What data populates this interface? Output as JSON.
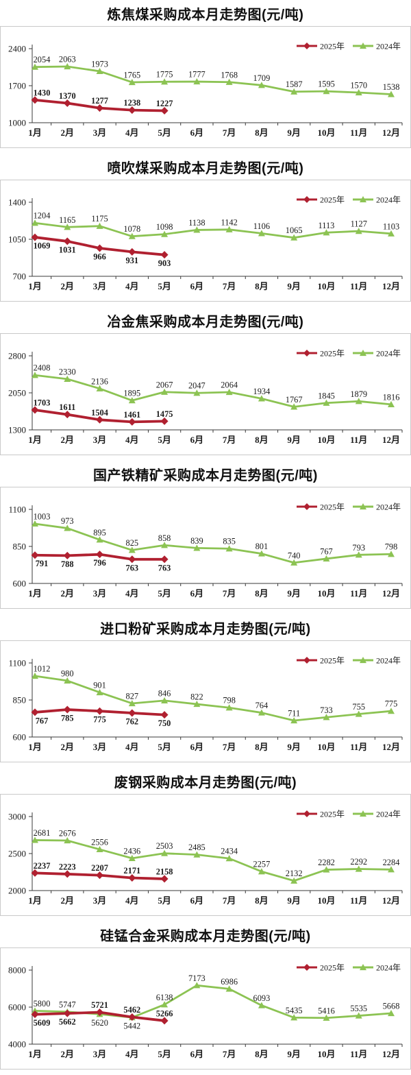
{
  "page": {
    "unit_note": "元/吨",
    "months": [
      "1月",
      "2月",
      "3月",
      "4月",
      "5月",
      "6月",
      "7月",
      "8月",
      "9月",
      "10月",
      "11月",
      "12月"
    ]
  },
  "colors": {
    "series_2025": "#b02030",
    "series_2024": "#8cc353",
    "axis": "#3a3a3a",
    "box_border": "#c9c9c9",
    "label_text": "#1a1a1a"
  },
  "legend": {
    "items": [
      {
        "label": "2025年",
        "color": "#b02030",
        "marker": "diamond"
      },
      {
        "label": "2024年",
        "color": "#8cc353",
        "marker": "triangle"
      }
    ],
    "position": "top-right"
  },
  "chart_data": [
    {
      "type": "line",
      "title": "炼焦煤采购成本月走势图(元/吨)",
      "ylim": [
        1000,
        2400
      ],
      "yticks": [
        1000,
        1700,
        2400
      ],
      "grid": false,
      "legend_position": "top-right",
      "series": [
        {
          "name": "2025年",
          "color": "#b02030",
          "marker": "diamond",
          "bold_labels": true,
          "values": [
            1430,
            1370,
            1277,
            1238,
            1227
          ],
          "label_pos": "above"
        },
        {
          "name": "2024年",
          "color": "#8cc353",
          "marker": "triangle",
          "bold_labels": false,
          "values": [
            2054,
            2063,
            1973,
            1765,
            1775,
            1777,
            1768,
            1709,
            1587,
            1595,
            1570,
            1538
          ],
          "label_pos": "above"
        }
      ]
    },
    {
      "type": "line",
      "title": "喷吹煤采购成本月走势图(元/吨)",
      "ylim": [
        700,
        1400
      ],
      "yticks": [
        700,
        1050,
        1400
      ],
      "grid": false,
      "legend_position": "top-right",
      "series": [
        {
          "name": "2025年",
          "color": "#b02030",
          "marker": "diamond",
          "bold_labels": true,
          "values": [
            1069,
            1031,
            966,
            931,
            903
          ],
          "label_pos": "below"
        },
        {
          "name": "2024年",
          "color": "#8cc353",
          "marker": "triangle",
          "bold_labels": false,
          "values": [
            1204,
            1165,
            1175,
            1078,
            1098,
            1138,
            1142,
            1106,
            1065,
            1113,
            1127,
            1103
          ],
          "label_pos": "above"
        }
      ]
    },
    {
      "type": "line",
      "title": "冶金焦采购成本月走势图(元/吨)",
      "ylim": [
        1300,
        2800
      ],
      "yticks": [
        1300,
        2050,
        2800
      ],
      "grid": false,
      "legend_position": "top-right",
      "series": [
        {
          "name": "2025年",
          "color": "#b02030",
          "marker": "diamond",
          "bold_labels": true,
          "values": [
            1703,
            1611,
            1504,
            1461,
            1475
          ],
          "label_pos": "above"
        },
        {
          "name": "2024年",
          "color": "#8cc353",
          "marker": "triangle",
          "bold_labels": false,
          "values": [
            2408,
            2330,
            2136,
            1895,
            2067,
            2047,
            2064,
            1934,
            1767,
            1845,
            1879,
            1816
          ],
          "label_pos": "above"
        }
      ]
    },
    {
      "type": "line",
      "title": "国产铁精矿采购成本月走势图(元/吨)",
      "ylim": [
        600,
        1100
      ],
      "yticks": [
        600,
        850,
        1100
      ],
      "grid": false,
      "legend_position": "top-right",
      "series": [
        {
          "name": "2025年",
          "color": "#b02030",
          "marker": "diamond",
          "bold_labels": true,
          "values": [
            791,
            788,
            796,
            763,
            763
          ],
          "label_pos": "below"
        },
        {
          "name": "2024年",
          "color": "#8cc353",
          "marker": "triangle",
          "bold_labels": false,
          "values": [
            1003,
            973,
            895,
            825,
            858,
            839,
            835,
            801,
            740,
            767,
            793,
            798
          ],
          "label_pos": "above"
        }
      ]
    },
    {
      "type": "line",
      "title": "进口粉矿采购成本月走势图(元/吨)",
      "ylim": [
        600,
        1100
      ],
      "yticks": [
        600,
        850,
        1100
      ],
      "grid": false,
      "legend_position": "top-right",
      "series": [
        {
          "name": "2025年",
          "color": "#b02030",
          "marker": "diamond",
          "bold_labels": true,
          "values": [
            767,
            785,
            775,
            762,
            750
          ],
          "label_pos": "below"
        },
        {
          "name": "2024年",
          "color": "#8cc353",
          "marker": "triangle",
          "bold_labels": false,
          "values": [
            1012,
            980,
            901,
            827,
            846,
            822,
            798,
            764,
            711,
            733,
            755,
            775
          ],
          "label_pos": "above"
        }
      ]
    },
    {
      "type": "line",
      "title": "废钢采购成本月走势图(元/吨)",
      "ylim": [
        2000,
        3000
      ],
      "yticks": [
        2000,
        2500,
        3000
      ],
      "grid": false,
      "legend_position": "top-right",
      "series": [
        {
          "name": "2025年",
          "color": "#b02030",
          "marker": "diamond",
          "bold_labels": true,
          "values": [
            2237,
            2223,
            2207,
            2171,
            2158
          ],
          "label_pos": "above"
        },
        {
          "name": "2024年",
          "color": "#8cc353",
          "marker": "triangle",
          "bold_labels": false,
          "values": [
            2681,
            2676,
            2556,
            2436,
            2503,
            2485,
            2434,
            2257,
            2132,
            2282,
            2292,
            2284
          ],
          "label_pos": "above"
        }
      ]
    },
    {
      "type": "line",
      "title": "硅锰合金采购成本月走势图(元/吨)",
      "ylim": [
        4000,
        8000
      ],
      "yticks": [
        4000,
        6000,
        8000
      ],
      "grid": false,
      "legend_position": "top-right",
      "series": [
        {
          "name": "2025年",
          "color": "#b02030",
          "marker": "diamond",
          "bold_labels": true,
          "values": [
            5609,
            5662,
            5721,
            5462,
            5266
          ],
          "label_pos": [
            "below",
            "below",
            "above",
            "above",
            "above"
          ]
        },
        {
          "name": "2024年",
          "color": "#8cc353",
          "marker": "triangle",
          "bold_labels": false,
          "values": [
            5800,
            5747,
            5620,
            5442,
            6138,
            7173,
            6986,
            6093,
            5435,
            5416,
            5535,
            5668
          ],
          "label_pos": [
            "above",
            "above",
            "below",
            "below",
            "above",
            "above",
            "above",
            "above",
            "above",
            "above",
            "above",
            "above"
          ]
        }
      ]
    }
  ]
}
